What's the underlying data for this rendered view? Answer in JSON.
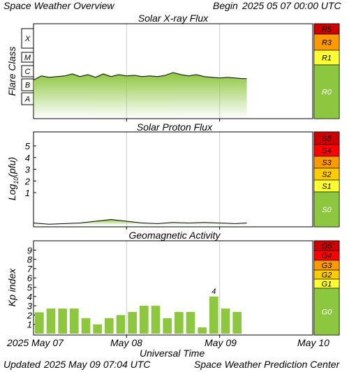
{
  "header": {
    "title": "Space Weather Overview",
    "begin_label": "Begin",
    "begin_date": "2025 05 07 00:00 UTC"
  },
  "footer": {
    "updated_label": "Updated",
    "updated_date": "2025 May 09 07:04 UTC",
    "source": "Space Weather Prediction Center"
  },
  "time_axis": {
    "title": "Universal Time",
    "tick_labels": [
      "2025 May 07",
      "May 08",
      "May 09",
      "May 10"
    ],
    "range": [
      "2025-05-07T00:00Z",
      "2025-05-10T00:00Z"
    ],
    "data_end": "2025-05-09T07:04Z"
  },
  "colors": {
    "data_green": "#8dc63f",
    "grid": "#cccccc",
    "scale_red_dark": "#cc0000",
    "scale_red": "#ff0000",
    "scale_orange": "#ff9900",
    "scale_yellow": "#ffcc00",
    "scale_light_yellow": "#ffff33",
    "scale_green": "#8dc63f"
  },
  "chart_data": [
    {
      "type": "area",
      "title": "Solar X-ray Flux",
      "ylabel": "Flare Class",
      "y_scale": "log",
      "class_labels": [
        "X",
        "M",
        "C",
        "B",
        "A"
      ],
      "scale": [
        {
          "label": "R5",
          "color": "#cc0000"
        },
        {
          "label": "R3",
          "color": "#ff9900"
        },
        {
          "label": "R1",
          "color": "#ffff33"
        },
        {
          "label": "R0",
          "color": "#8dc63f"
        }
      ],
      "x_hours": [
        0,
        2,
        4,
        6,
        8,
        10,
        12,
        14,
        16,
        18,
        20,
        22,
        24,
        26,
        28,
        30,
        32,
        34,
        36,
        38,
        40,
        42,
        44,
        46,
        48,
        50,
        52,
        54,
        55
      ],
      "class_level": [
        1.3,
        1.6,
        1.5,
        1.55,
        1.6,
        1.75,
        1.55,
        1.7,
        1.5,
        1.75,
        1.55,
        1.7,
        1.6,
        1.65,
        1.55,
        1.6,
        1.55,
        1.65,
        1.85,
        1.7,
        1.6,
        1.7,
        1.55,
        1.5,
        1.45,
        1.5,
        1.45,
        1.4,
        1.4
      ]
    },
    {
      "type": "area",
      "title": "Solar Proton Flux",
      "ylabel": "Log10(pfu)",
      "ylabel_main": "Log",
      "ylabel_sub": "10",
      "ylabel_unit": "(pfu)",
      "yticks": [
        "5",
        "4",
        "3",
        "2",
        "1"
      ],
      "ylim": [
        -2.5,
        6
      ],
      "scale": [
        {
          "label": "S5",
          "color": "#cc0000"
        },
        {
          "label": "S4",
          "color": "#ff0000"
        },
        {
          "label": "S3",
          "color": "#ff9900"
        },
        {
          "label": "S2",
          "color": "#ffcc00"
        },
        {
          "label": "S1",
          "color": "#ffff33"
        },
        {
          "label": "S0",
          "color": "#8dc63f"
        }
      ],
      "x_hours": [
        0,
        4,
        8,
        12,
        16,
        20,
        24,
        28,
        32,
        36,
        40,
        44,
        48,
        52,
        55
      ],
      "log_pfu": [
        -1.6,
        -1.7,
        -1.65,
        -1.6,
        -1.45,
        -1.3,
        -1.45,
        -1.6,
        -1.65,
        -1.55,
        -1.6,
        -1.55,
        -1.6,
        -1.65,
        -1.6
      ]
    },
    {
      "type": "bar",
      "title": "Geomagnetic Activity",
      "ylabel": "Kp index",
      "yticks": [
        "9",
        "8",
        "7",
        "6",
        "5",
        "4",
        "3",
        "2",
        "1"
      ],
      "ylim": [
        0,
        10
      ],
      "scale": [
        {
          "label": "G5",
          "color": "#cc0000"
        },
        {
          "label": "G4",
          "color": "#ff0000"
        },
        {
          "label": "G3",
          "color": "#ff9900"
        },
        {
          "label": "G2",
          "color": "#ffcc00"
        },
        {
          "label": "G1",
          "color": "#ffff33"
        },
        {
          "label": "G0",
          "color": "#8dc63f"
        }
      ],
      "bar_start_hours": [
        0,
        3,
        6,
        9,
        12,
        15,
        18,
        21,
        24,
        27,
        30,
        33,
        36,
        39,
        42,
        45,
        48,
        51,
        54
      ],
      "values": [
        2.3,
        2.7,
        2.7,
        2.7,
        1.67,
        1.0,
        1.67,
        2.0,
        2.33,
        3.0,
        3.0,
        1.67,
        2.33,
        2.33,
        0.67,
        4.0,
        2.7,
        2.33,
        0
      ],
      "annotation": {
        "bar_index": 15,
        "text": "4"
      }
    }
  ]
}
